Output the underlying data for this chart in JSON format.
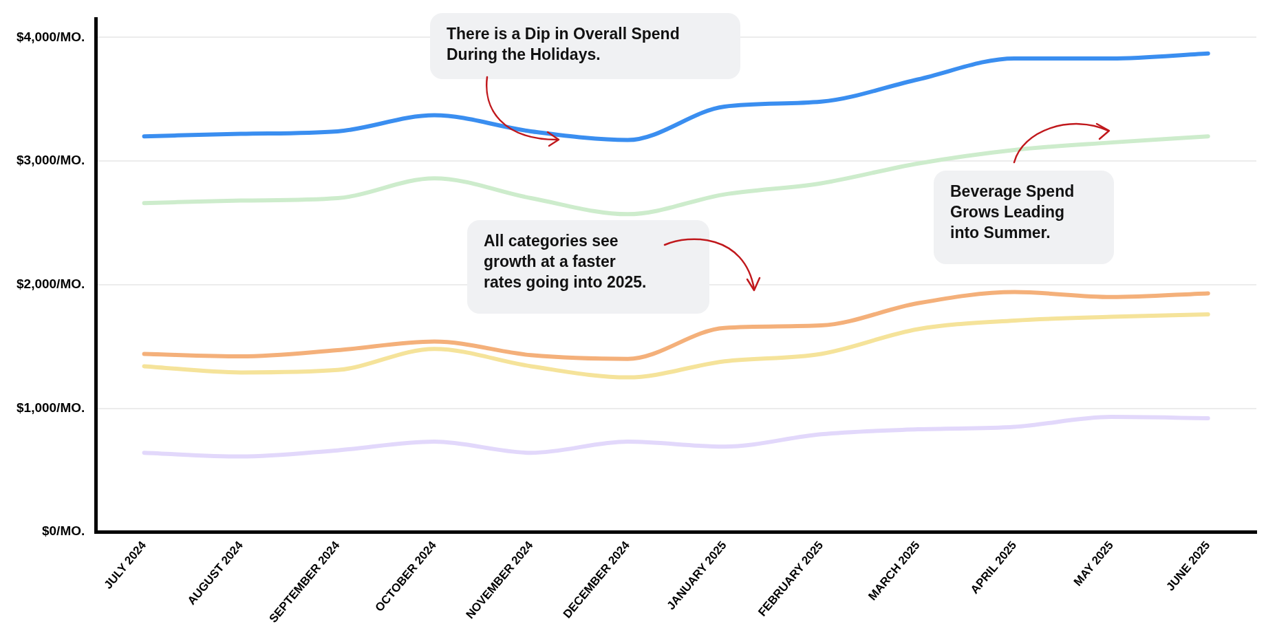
{
  "chart_data": {
    "type": "line",
    "categories": [
      "JULY 2024",
      "AUGUST 2024",
      "SEPTEMBER 2024",
      "OCTOBER 2024",
      "NOVEMBER 2024",
      "DECEMBER 2024",
      "JANUARY 2025",
      "FEBRUARY 2025",
      "MARCH 2025",
      "APRIL 2025",
      "MAY 2025",
      "JUNE 2025"
    ],
    "series": [
      {
        "color": "#3a8ef0",
        "values": [
          3200,
          3220,
          3240,
          3370,
          3240,
          3170,
          3440,
          3480,
          3660,
          3830,
          3830,
          3870
        ]
      },
      {
        "color": "#cdeccc",
        "values": [
          2660,
          2680,
          2700,
          2860,
          2700,
          2570,
          2730,
          2820,
          2980,
          3090,
          3150,
          3200
        ]
      },
      {
        "color": "#f4b07a",
        "values": [
          1440,
          1420,
          1470,
          1540,
          1430,
          1400,
          1650,
          1670,
          1850,
          1940,
          1900,
          1930
        ]
      },
      {
        "color": "#f5e39a",
        "values": [
          1340,
          1290,
          1310,
          1480,
          1340,
          1250,
          1380,
          1440,
          1640,
          1710,
          1740,
          1760
        ]
      },
      {
        "color": "#e2d8fb",
        "values": [
          640,
          610,
          660,
          730,
          640,
          730,
          690,
          790,
          830,
          850,
          930,
          920
        ]
      }
    ],
    "ylim": [
      0,
      4150
    ],
    "yticks": [
      {
        "value": 0,
        "label": "$0/MO."
      },
      {
        "value": 1000,
        "label": "$1,000/MO."
      },
      {
        "value": 2000,
        "label": "$2,000/MO."
      },
      {
        "value": 3000,
        "label": "$3,000/MO."
      },
      {
        "value": 4000,
        "label": "$4,000/MO."
      }
    ],
    "grid": "y",
    "legend": false,
    "marker": "none",
    "line_style": "solid",
    "annotations": [
      "There is a Dip in Overall Spend During the Holidays.",
      "All categories see growth at a faster rates going into 2025.",
      "Beverage Spend Grows Leading into Summer."
    ]
  }
}
